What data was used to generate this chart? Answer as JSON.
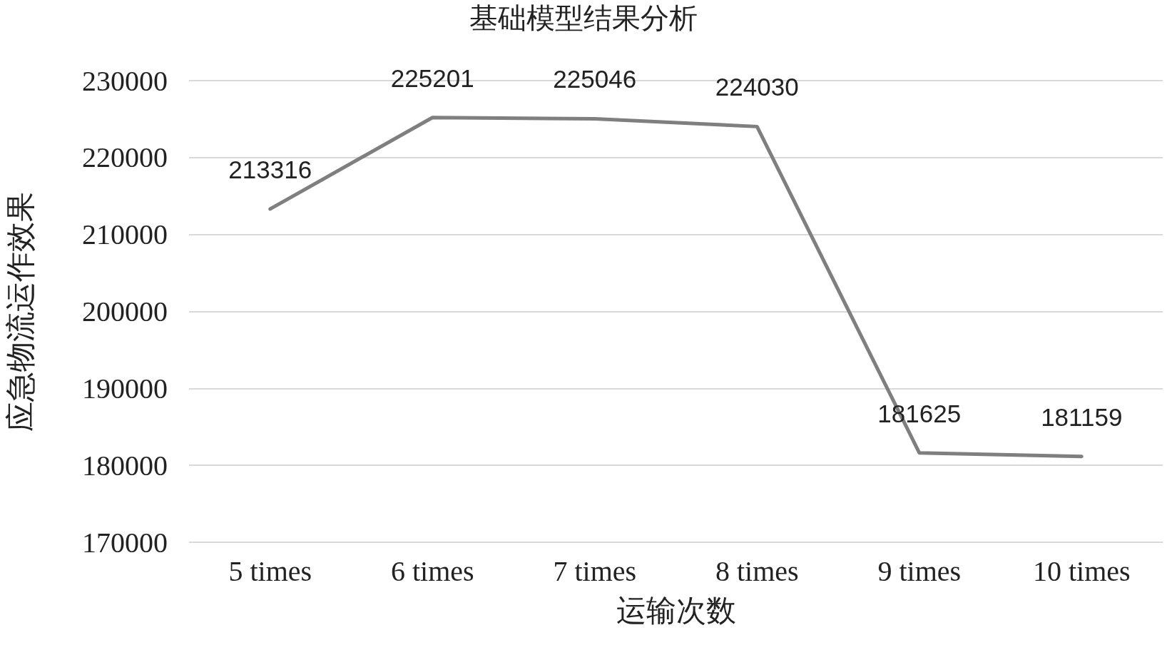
{
  "chart_data": {
    "type": "line",
    "title": "基础模型结果分析",
    "xlabel": "运输次数",
    "ylabel": "应急物流运作效果",
    "categories": [
      "5 times",
      "6 times",
      "7 times",
      "8 times",
      "9 times",
      "10 times"
    ],
    "series": [
      {
        "color": "#7f7f7f",
        "values": [
          213316,
          225201,
          225046,
          224030,
          181625,
          181159
        ]
      }
    ],
    "ylim": [
      170000,
      230000
    ],
    "yticks": [
      170000,
      180000,
      190000,
      200000,
      210000,
      220000,
      230000
    ],
    "grid": "y",
    "data_labels": true,
    "marker": "none",
    "line_style": "solid"
  }
}
